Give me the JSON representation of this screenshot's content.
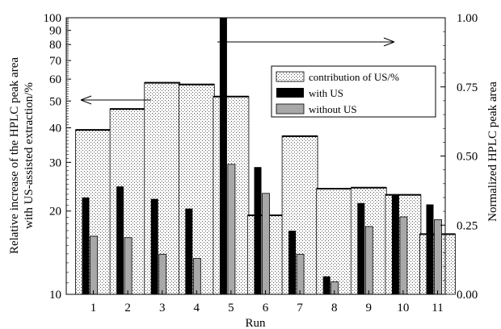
{
  "chart_data": {
    "type": "bar",
    "xlabel": "Run",
    "ylabel_left_line1": "Relative increase of the HPLC peak area",
    "ylabel_left_line2": "with US-assisted extraction/%",
    "ylabel_right": "Normalized HPLC peak area",
    "categories": [
      "1",
      "2",
      "3",
      "4",
      "5",
      "6",
      "7",
      "8",
      "9",
      "10",
      "11"
    ],
    "left_axis": {
      "scale": "log",
      "ylim": [
        10,
        100
      ],
      "ticks": [
        10,
        20,
        30,
        40,
        50,
        60,
        70,
        80,
        90,
        100
      ],
      "tick_labels": [
        "10",
        "20",
        "30",
        "40",
        "50",
        "60",
        "70",
        "80",
        "90",
        "100"
      ]
    },
    "right_axis": {
      "scale": "linear",
      "ylim": [
        0.0,
        1.0
      ],
      "ticks": [
        0.0,
        0.25,
        0.5,
        0.75,
        1.0
      ],
      "tick_labels": [
        "0.00",
        "0.25",
        "0.50",
        "0.75",
        "1.00"
      ]
    },
    "series": [
      {
        "name": "contribution of US/%",
        "axis": "left",
        "color": "#ffffff",
        "pattern": "dots",
        "values": [
          39.3,
          46.8,
          58.2,
          57.4,
          51.9,
          19.3,
          37.3,
          24.1,
          24.3,
          22.9,
          16.5
        ]
      },
      {
        "name": "with US",
        "axis": "right",
        "color": "#000000",
        "values": [
          0.35,
          0.39,
          0.345,
          0.31,
          1.0,
          0.46,
          0.23,
          0.065,
          0.33,
          0.36,
          0.325
        ]
      },
      {
        "name": "without US",
        "axis": "right",
        "color": "#a8a8a8",
        "values": [
          0.21,
          0.205,
          0.145,
          0.13,
          0.47,
          0.365,
          0.145,
          0.045,
          0.245,
          0.28,
          0.27
        ]
      }
    ],
    "legend": {
      "position": "upper-right",
      "entries": [
        "contribution of US/%",
        "with US",
        "without US"
      ]
    },
    "annotations": [
      "arrow pointing left to left axis",
      "arrow pointing right to right axis"
    ]
  }
}
